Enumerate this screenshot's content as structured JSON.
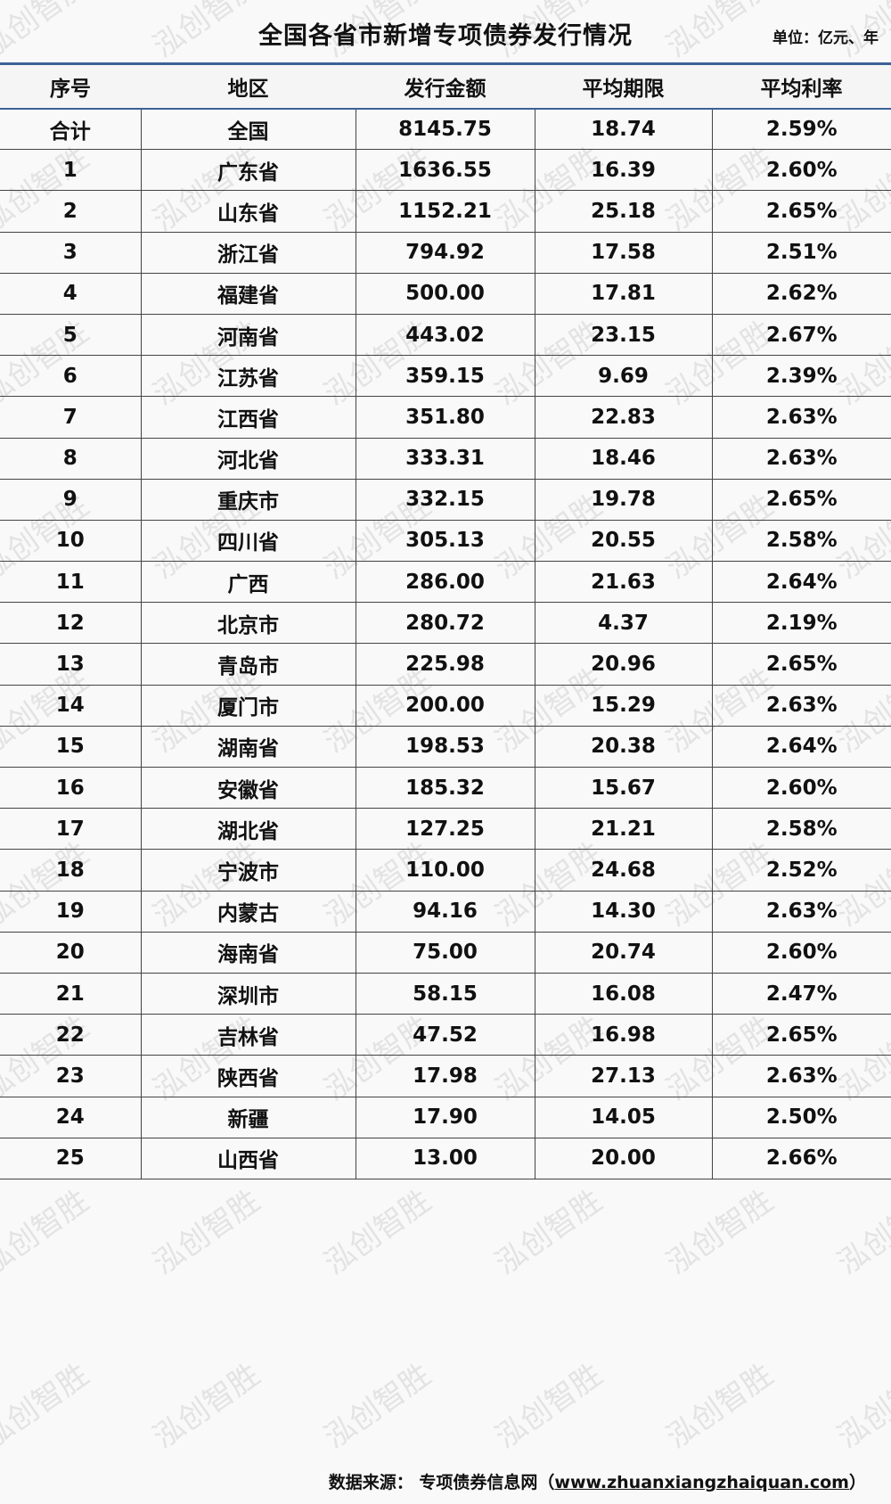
{
  "title": "全国各省市新增专项债券发行情况",
  "unit": "单位：亿元、年",
  "columns": [
    "序号",
    "地区",
    "发行金额",
    "平均期限",
    "平均利率"
  ],
  "rows": [
    [
      "合计",
      "全国",
      "8145.75",
      "18.74",
      "2.59%"
    ],
    [
      "1",
      "广东省",
      "1636.55",
      "16.39",
      "2.60%"
    ],
    [
      "2",
      "山东省",
      "1152.21",
      "25.18",
      "2.65%"
    ],
    [
      "3",
      "浙江省",
      "794.92",
      "17.58",
      "2.51%"
    ],
    [
      "4",
      "福建省",
      "500.00",
      "17.81",
      "2.62%"
    ],
    [
      "5",
      "河南省",
      "443.02",
      "23.15",
      "2.67%"
    ],
    [
      "6",
      "江苏省",
      "359.15",
      "9.69",
      "2.39%"
    ],
    [
      "7",
      "江西省",
      "351.80",
      "22.83",
      "2.63%"
    ],
    [
      "8",
      "河北省",
      "333.31",
      "18.46",
      "2.63%"
    ],
    [
      "9",
      "重庆市",
      "332.15",
      "19.78",
      "2.65%"
    ],
    [
      "10",
      "四川省",
      "305.13",
      "20.55",
      "2.58%"
    ],
    [
      "11",
      "广西",
      "286.00",
      "21.63",
      "2.64%"
    ],
    [
      "12",
      "北京市",
      "280.72",
      "4.37",
      "2.19%"
    ],
    [
      "13",
      "青岛市",
      "225.98",
      "20.96",
      "2.65%"
    ],
    [
      "14",
      "厦门市",
      "200.00",
      "15.29",
      "2.63%"
    ],
    [
      "15",
      "湖南省",
      "198.53",
      "20.38",
      "2.64%"
    ],
    [
      "16",
      "安徽省",
      "185.32",
      "15.67",
      "2.60%"
    ],
    [
      "17",
      "湖北省",
      "127.25",
      "21.21",
      "2.58%"
    ],
    [
      "18",
      "宁波市",
      "110.00",
      "24.68",
      "2.52%"
    ],
    [
      "19",
      "内蒙古",
      "94.16",
      "14.30",
      "2.63%"
    ],
    [
      "20",
      "海南省",
      "75.00",
      "20.74",
      "2.60%"
    ],
    [
      "21",
      "深圳市",
      "58.15",
      "16.08",
      "2.47%"
    ],
    [
      "22",
      "吉林省",
      "47.52",
      "16.98",
      "2.65%"
    ],
    [
      "23",
      "陕西省",
      "17.98",
      "27.13",
      "2.63%"
    ],
    [
      "24",
      "新疆",
      "17.90",
      "14.05",
      "2.50%"
    ],
    [
      "25",
      "山西省",
      "13.00",
      "20.00",
      "2.66%"
    ]
  ],
  "watermark": "泓创智胜",
  "source": {
    "label": "数据来源：",
    "site": "专项债券信息网（",
    "url": "www.zhuanxiangzhaiquan.com",
    "close": "）"
  },
  "colors": {
    "header_rule": "#3c6198",
    "grid": "#444444"
  }
}
